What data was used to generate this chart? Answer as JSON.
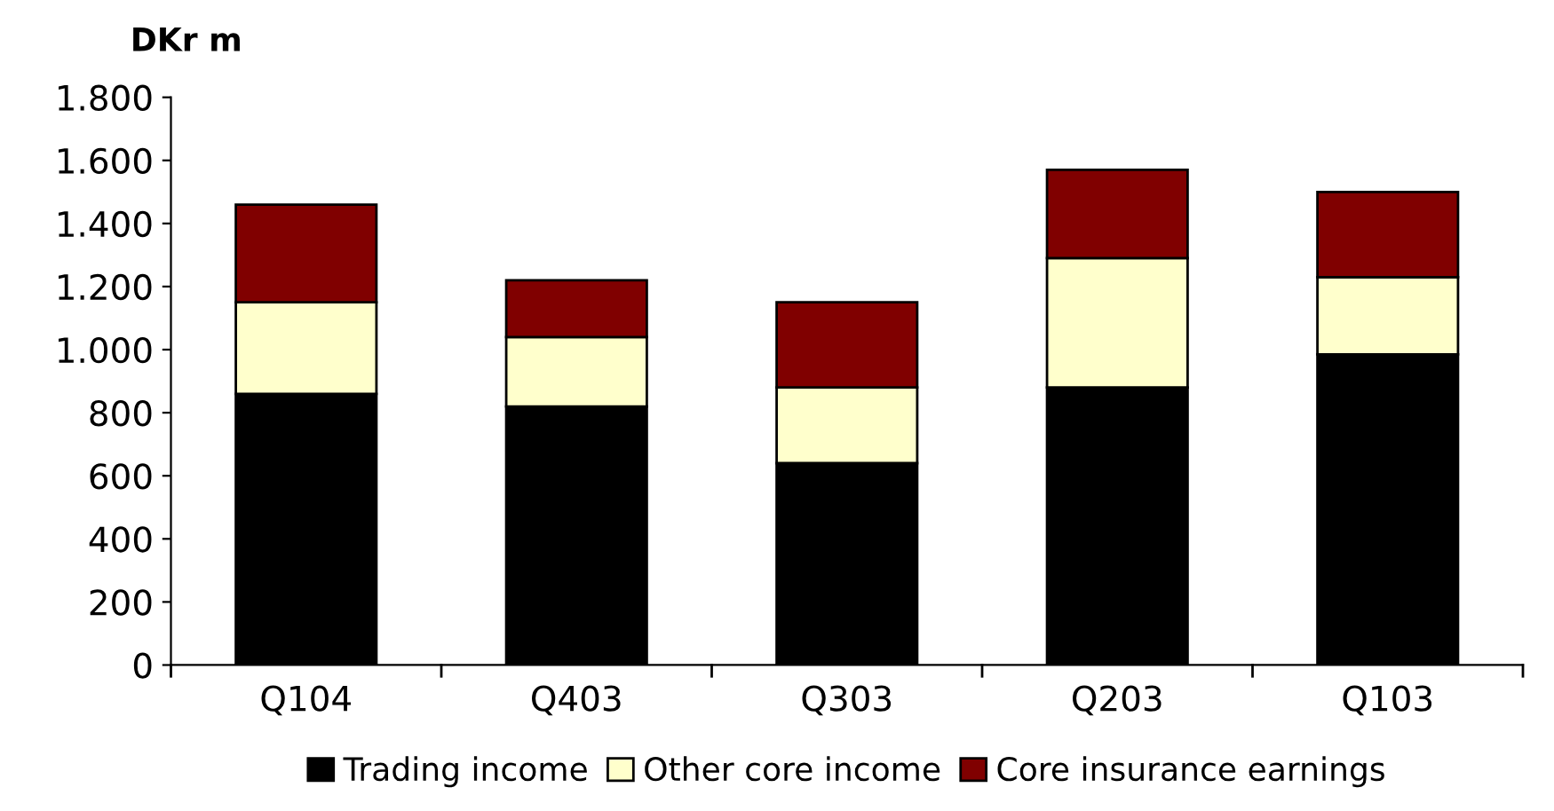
{
  "chart_data": {
    "type": "bar",
    "stacked": true,
    "ylabel": "DKr m",
    "categories": [
      "Q104",
      "Q403",
      "Q303",
      "Q203",
      "Q103"
    ],
    "series": [
      {
        "name": "Trading income",
        "color": "#000000",
        "values": [
          860,
          820,
          640,
          880,
          985
        ]
      },
      {
        "name": "Other core income",
        "color": "#ffffcc",
        "values": [
          290,
          220,
          240,
          410,
          245
        ]
      },
      {
        "name": "Core insurance earnings",
        "color": "#800000",
        "values": [
          310,
          180,
          270,
          280,
          270
        ]
      }
    ],
    "ylim": [
      0,
      1800
    ],
    "yticks": [
      0,
      200,
      400,
      600,
      800,
      {
        "value": 1000,
        "label": "1.000"
      },
      {
        "value": 1200,
        "label": "1.200"
      },
      {
        "value": 1400,
        "label": "1.400"
      },
      {
        "value": 1600,
        "label": "1.600"
      },
      {
        "value": 1800,
        "label": "1.800"
      }
    ],
    "grid": false,
    "legend": "bottom"
  }
}
